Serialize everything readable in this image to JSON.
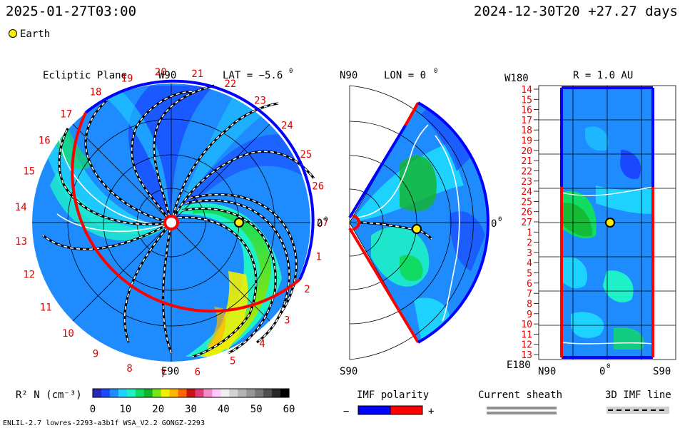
{
  "header": {
    "forecast_time": "2025-01-27T03:00",
    "run_info": "2024-12-30T20 +27.27 days",
    "earth_legend": "Earth"
  },
  "panels": {
    "ecliptic": {
      "label": "Ecliptic Plane",
      "top_label": "W90",
      "bottom_label": "E90",
      "right_label": "0",
      "lat_label": "LAT = −5.6",
      "deg": "0"
    },
    "meridional": {
      "top_label": "N90",
      "bottom_label": "S90",
      "lon_label": "LON = 0",
      "right_label": "0",
      "deg": "0"
    },
    "radial": {
      "r_label": "R = 1.0 AU",
      "top_left": "W180",
      "bottom_left": "E180",
      "x_left": "N90",
      "x_mid": "0",
      "x_right": "S90",
      "deg": "0"
    }
  },
  "chart_data": {
    "type": "heatmap",
    "title": "",
    "colorbar": {
      "label": "R² N (cm⁻³)",
      "ticks": [
        "0",
        "10",
        "20",
        "30",
        "40",
        "50",
        "60"
      ],
      "range": [
        0,
        60
      ],
      "colors": [
        "#2828b8",
        "#1a48ff",
        "#1e8cff",
        "#1ed2ff",
        "#1ef0c8",
        "#10dc64",
        "#14b428",
        "#78e614",
        "#f0f000",
        "#ffb400",
        "#ff6400",
        "#c81414",
        "#dc3c78",
        "#f08cc8",
        "#ffc8ff",
        "#f0f0f0",
        "#d2d2d2",
        "#b4b4b4",
        "#969696",
        "#787878",
        "#505050",
        "#282828",
        "#000000"
      ]
    },
    "ecliptic_longitude_labels": [
      {
        "label": "27",
        "deg": 0
      },
      {
        "label": "1",
        "deg": -13
      },
      {
        "label": "2",
        "deg": -26
      },
      {
        "label": "3",
        "deg": -40
      },
      {
        "label": "4",
        "deg": -53
      },
      {
        "label": "5",
        "deg": -66
      },
      {
        "label": "6",
        "deg": -80
      },
      {
        "label": "7",
        "deg": -93
      },
      {
        "label": "8",
        "deg": -106
      },
      {
        "label": "9",
        "deg": -120
      },
      {
        "label": "10",
        "deg": -133
      },
      {
        "label": "11",
        "deg": -146
      },
      {
        "label": "12",
        "deg": -160
      },
      {
        "label": "13",
        "deg": -173
      },
      {
        "label": "14",
        "deg": 174
      },
      {
        "label": "15",
        "deg": 160
      },
      {
        "label": "16",
        "deg": 147
      },
      {
        "label": "17",
        "deg": 134
      },
      {
        "label": "18",
        "deg": 120
      },
      {
        "label": "19",
        "deg": 107
      },
      {
        "label": "20",
        "deg": 94
      },
      {
        "label": "21",
        "deg": 80
      },
      {
        "label": "22",
        "deg": 67
      },
      {
        "label": "23",
        "deg": 54
      },
      {
        "label": "24",
        "deg": 40
      },
      {
        "label": "25",
        "deg": 27
      },
      {
        "label": "26",
        "deg": 14
      }
    ],
    "radial_rotation_labels": [
      "14",
      "15",
      "16",
      "17",
      "18",
      "19",
      "20",
      "21",
      "22",
      "23",
      "24",
      "25",
      "26",
      "27",
      "1",
      "2",
      "3",
      "4",
      "5",
      "6",
      "7",
      "8",
      "9",
      "10",
      "11",
      "12",
      "13"
    ],
    "earth": {
      "ecliptic_lon_deg": 0,
      "lat_deg": -5.6,
      "r_au": 1.0
    }
  },
  "legends": {
    "imf_polarity": {
      "title": "IMF polarity",
      "minus": "−",
      "plus": "+",
      "neg_color": "#0000ff",
      "pos_color": "#ff0000"
    },
    "current_sheath": {
      "title": "Current sheath",
      "color": "#909090"
    },
    "imf_line": {
      "title": "3D IMF line"
    }
  },
  "footer": {
    "model_info": "ENLIL-2.7 lowres-2293-a3b1f WSA_V2.2 GONGZ-2293"
  },
  "colors": {
    "label_red": "#e00000",
    "pos_polarity": "#ff0000",
    "neg_polarity": "#0000ff",
    "earth_fill": "#ffee00"
  }
}
